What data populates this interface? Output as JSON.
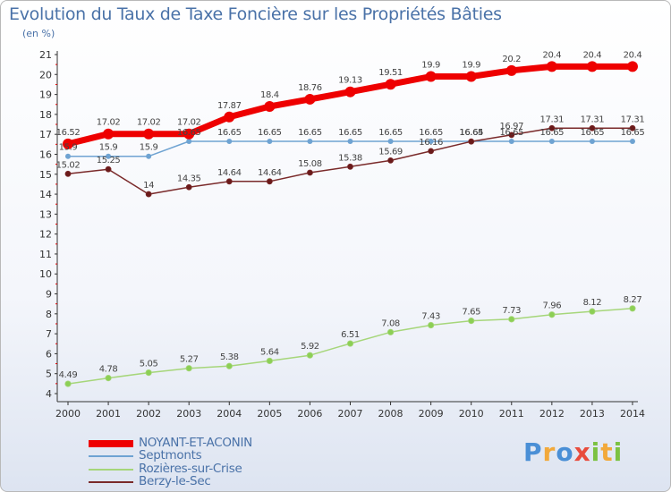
{
  "title": "Evolution du Taux de Taxe Foncière sur les Propriétés Bâties",
  "subtitle": "(en %)",
  "logo": "Proxiti",
  "colors": {
    "title": "#4a72a8",
    "axis": "#333333",
    "NOYANT-ET-ACONIN": "#ee0000",
    "Septmonts": "#6fa3d2",
    "Rozières-sur-Crise": "#a6d67a",
    "Berzy-le-Sec": "#7a2a2a"
  },
  "chart_data": {
    "type": "line",
    "title": "Evolution du Taux de Taxe Foncière sur les Propriétés Bâties",
    "ylabel": "(en %)",
    "xlabel": "",
    "x": [
      "2000",
      "2001",
      "2002",
      "2003",
      "2004",
      "2005",
      "2006",
      "2007",
      "2008",
      "2009",
      "2010",
      "2011",
      "2012",
      "2013",
      "2014"
    ],
    "ylim": [
      4,
      21
    ],
    "yticks": [
      "4",
      "5",
      "6",
      "7",
      "8",
      "9",
      "10",
      "11",
      "12",
      "13",
      "14",
      "15",
      "16",
      "17",
      "18",
      "19",
      "20",
      "21"
    ],
    "grid": false,
    "legend_position": "bottom-left",
    "series": [
      {
        "name": "NOYANT-ET-ACONIN",
        "values": [
          16.52,
          17.02,
          17.02,
          17.02,
          17.87,
          18.4,
          18.76,
          19.13,
          19.51,
          19.9,
          19.9,
          20.2,
          20.4,
          20.4,
          20.4
        ],
        "labels": [
          "16.52",
          "17.02",
          "17.02",
          "17.02",
          "17.87",
          "18.4",
          "18.76",
          "19.13",
          "19.51",
          "19.9",
          "19.9",
          "20.2",
          "20.4",
          "20.4",
          "20.4"
        ]
      },
      {
        "name": "Septmonts",
        "values": [
          15.9,
          15.9,
          15.9,
          16.65,
          16.65,
          16.65,
          16.65,
          16.65,
          16.65,
          16.65,
          16.65,
          16.65,
          16.65,
          16.65,
          16.65
        ],
        "labels": [
          "15.9",
          "15.9",
          "15.9",
          "16.65",
          "16.65",
          "16.65",
          "16.65",
          "16.65",
          "16.65",
          "16.65",
          "16.65",
          "16.65",
          "16.65",
          "16.65",
          "16.65"
        ]
      },
      {
        "name": "Rozières-sur-Crise",
        "values": [
          4.49,
          4.78,
          5.05,
          5.27,
          5.38,
          5.64,
          5.92,
          6.51,
          7.08,
          7.43,
          7.65,
          7.73,
          7.96,
          8.12,
          8.27
        ],
        "labels": [
          "4.49",
          "4.78",
          "5.05",
          "5.27",
          "5.38",
          "5.64",
          "5.92",
          "6.51",
          "7.08",
          "7.43",
          "7.65",
          "7.73",
          "7.96",
          "8.12",
          "8.27"
        ]
      },
      {
        "name": "Berzy-le-Sec",
        "values": [
          15.02,
          15.25,
          14,
          14.35,
          14.64,
          14.64,
          15.08,
          15.38,
          15.69,
          16.16,
          16.64,
          16.97,
          17.31,
          17.31,
          17.31
        ],
        "labels": [
          "15.02",
          "15.25",
          "14",
          "14.35",
          "14.64",
          "14.64",
          "15.08",
          "15.38",
          "15.69",
          "16.16",
          "16.64",
          "16.97",
          "17.31",
          "17.31",
          "17.31"
        ]
      }
    ]
  }
}
